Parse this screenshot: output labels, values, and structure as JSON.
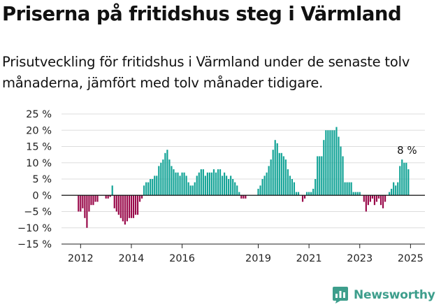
{
  "header": {
    "title": "Priserna på fritidshus steg i Värmland",
    "subtitle": "Prisutveckling för fritidshus i Värmland under de senaste tolv månaderna, jämfört med tolv månader tidigare."
  },
  "brand": {
    "name": "Newsworthy",
    "icon": "newsworthy-logo-icon",
    "color": "#3d9e8c"
  },
  "chart_data": {
    "type": "bar",
    "title": "Priserna på fritidshus steg i Värmland",
    "subtitle": "Prisutveckling för fritidshus i Värmland under de senaste tolv månaderna, jämfört med tolv månader tidigare.",
    "x_start": "2011-12",
    "x_step": "month",
    "x_ticks": [
      "2012",
      "2014",
      "2016",
      "2019",
      "2021",
      "2023",
      "2025"
    ],
    "y_ticks": [
      "25 %",
      "20 %",
      "15 %",
      "10 %",
      "5 %",
      "0 %",
      "−5 %",
      "−10 %",
      "−15 %"
    ],
    "ylim": [
      -15,
      25
    ],
    "y_unit": "%",
    "grid": true,
    "colors": {
      "positive": "#12a396",
      "negative": "#99094a"
    },
    "annotation": {
      "text": "8 %",
      "target": "last"
    },
    "series": [
      {
        "values": [
          -5,
          -5,
          -4,
          -7,
          -10,
          -5,
          -3,
          -3,
          -2,
          -2,
          0,
          0,
          0,
          -1,
          -1,
          -0.5,
          3,
          -4,
          -5,
          -6,
          -7,
          -8,
          -9,
          -8,
          -7,
          -7,
          -7,
          -6,
          -6,
          -2,
          -1,
          3,
          4,
          4,
          5,
          5,
          6,
          6,
          9,
          10,
          11,
          13,
          14,
          11,
          9,
          8,
          7,
          7,
          6,
          7,
          7,
          6,
          4,
          3,
          3,
          4,
          6,
          7,
          8,
          8,
          6,
          7,
          7,
          7,
          8,
          7,
          8,
          8,
          6,
          7,
          6,
          5,
          6,
          5,
          4,
          3,
          1,
          -1,
          -1,
          -1,
          0,
          0,
          0,
          0,
          0,
          2,
          3,
          5,
          6,
          7,
          9,
          11,
          14,
          17,
          16,
          13,
          13,
          12,
          11,
          8,
          6,
          5,
          4,
          1,
          1,
          0,
          -2,
          -1,
          1,
          1,
          1,
          2,
          5,
          12,
          12,
          12,
          17,
          20,
          20,
          20,
          20,
          20,
          21,
          18,
          15,
          12,
          4,
          4,
          4,
          4,
          1,
          1,
          1,
          1,
          0,
          -2,
          -5,
          -3,
          -2,
          -1,
          -3,
          -2,
          -1,
          -3,
          -4,
          -2,
          0,
          1,
          2,
          4,
          3,
          4,
          9,
          11,
          10,
          10,
          8
        ]
      }
    ]
  }
}
